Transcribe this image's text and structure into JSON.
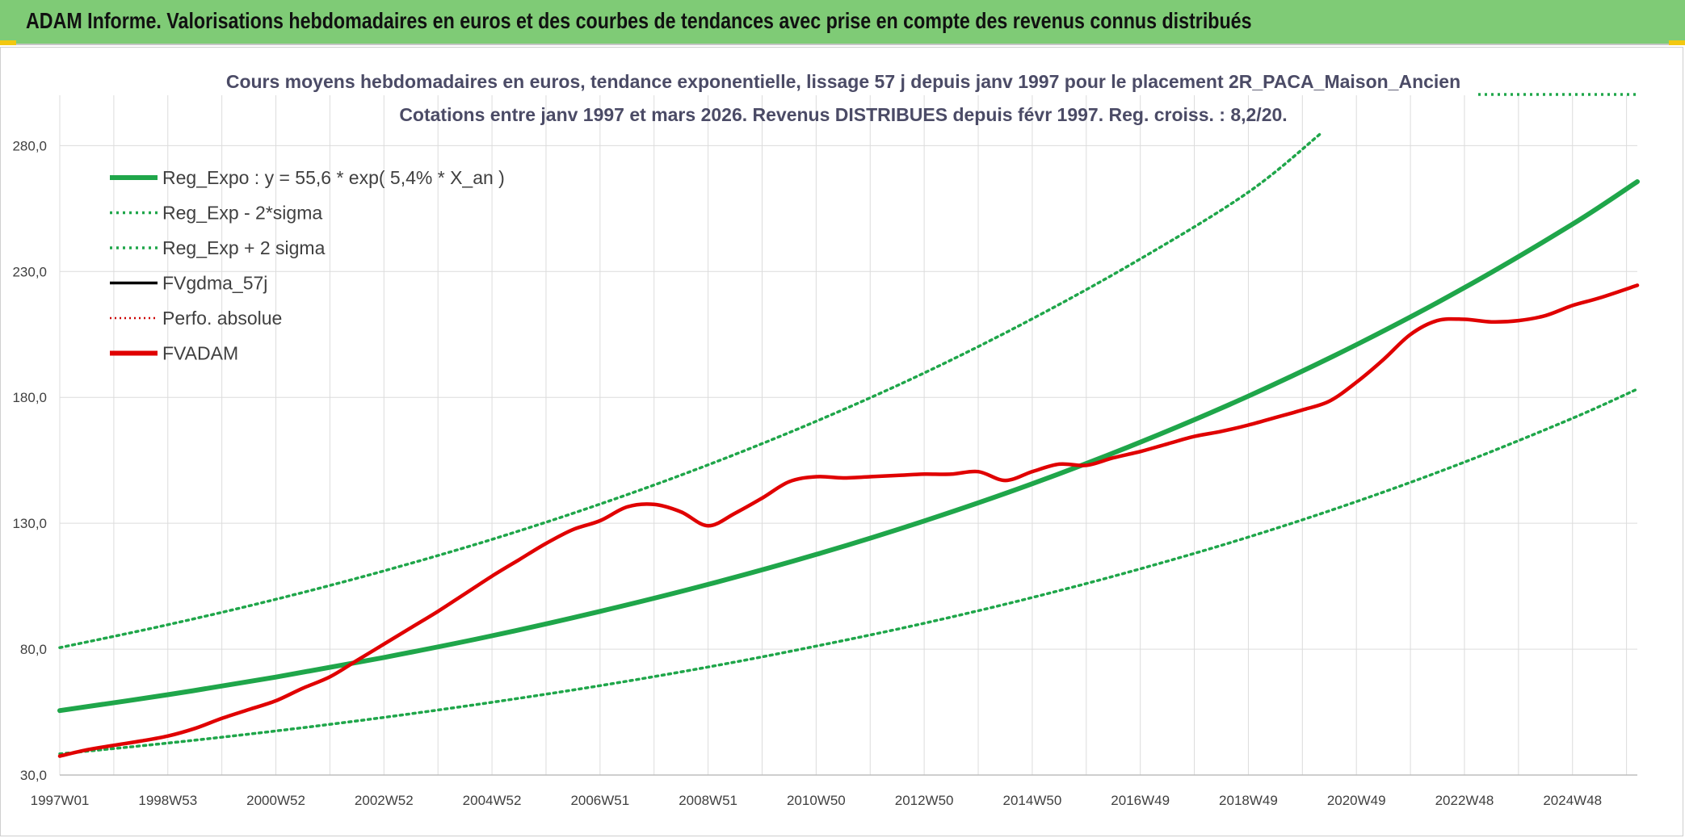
{
  "header": {
    "title": "ADAM Informe. Valorisations hebdomadaires en euros et des courbes de tendances avec prise en compte des revenus connus distribués"
  },
  "colors": {
    "header_bg": "#7fcb76",
    "reg_expo": "#1fa64a",
    "sigma_lines": "#1fa64a",
    "fvgdma": "#000000",
    "perfo": "#cc0000",
    "fvadam": "#e00000",
    "grid": "#dcdcdc"
  },
  "chart_data": {
    "type": "line",
    "subtitle_line1": "Cours moyens hebdomadaires en euros, tendance exponentielle, lissage 57 j depuis janv 1997 pour le placement 2R_PACA_Maison_Ancien",
    "subtitle_line2": "Cotations entre janv 1997 et mars 2026. Revenus DISTRIBUES depuis févr 1997. Reg. croiss. : 8,2/20.",
    "x_range": [
      "1997W01",
      "2026W12"
    ],
    "x_tick_labels": [
      "1997W01",
      "1998W53",
      "2000W52",
      "2002W52",
      "2004W52",
      "2006W51",
      "2008W51",
      "2010W50",
      "2012W50",
      "2014W50",
      "2016W49",
      "2018W49",
      "2020W49",
      "2022W48",
      "2024W48"
    ],
    "y_tick_labels": [
      "30,0",
      "80,0",
      "130,0",
      "180,0",
      "230,0",
      "280,0"
    ],
    "ylim": [
      30,
      300
    ],
    "grid": true,
    "legend_position": "top-left",
    "legend": [
      {
        "label": "Reg_Expo : y = 55,6 * exp( 5,4% *  X_an )",
        "style": "solid-thick",
        "color": "#1fa64a"
      },
      {
        "label": "Reg_Exp - 2*sigma",
        "style": "dotted",
        "color": "#1fa64a"
      },
      {
        "label": "Reg_Exp + 2 sigma",
        "style": "dotted",
        "color": "#1fa64a"
      },
      {
        "label": "FVgdma_57j",
        "style": "solid",
        "color": "#000000"
      },
      {
        "label": "Perfo. absolue",
        "style": "dotted-thin",
        "color": "#cc0000"
      },
      {
        "label": "FVADAM",
        "style": "solid-thick",
        "color": "#e00000"
      }
    ],
    "series": [
      {
        "name": "Reg_Expo : y = 55,6 * exp( 5,4% *  X_an )",
        "x": [
          1997.0,
          1999.0,
          2001.0,
          2003.0,
          2005.0,
          2007.0,
          2009.0,
          2011.0,
          2013.0,
          2015.0,
          2017.0,
          2019.0,
          2021.0,
          2023.0,
          2025.0,
          2026.2
        ],
        "y": [
          55.6,
          61.9,
          68.9,
          76.7,
          85.3,
          95.0,
          105.7,
          117.6,
          130.9,
          145.7,
          162.2,
          180.5,
          200.9,
          223.6,
          248.8,
          265.7
        ]
      },
      {
        "name": "Reg_Exp - 2*sigma",
        "x": [
          1997.0,
          1999.0,
          2001.0,
          2003.0,
          2005.0,
          2007.0,
          2009.0,
          2011.0,
          2013.0,
          2015.0,
          2017.0,
          2019.0,
          2021.0,
          2023.0,
          2025.0,
          2026.2
        ],
        "y": [
          38.4,
          42.7,
          47.5,
          52.9,
          58.9,
          65.5,
          72.9,
          81.2,
          90.3,
          100.5,
          111.9,
          124.5,
          138.6,
          154.3,
          171.7,
          183.3
        ]
      },
      {
        "name": "Reg_Exp + 2 sigma",
        "x": [
          1997.0,
          1999.0,
          2001.0,
          2003.0,
          2005.0,
          2007.0,
          2009.0,
          2011.0,
          2013.0,
          2015.0,
          2017.0,
          2019.0,
          2020.35
        ],
        "y": [
          80.6,
          89.7,
          99.8,
          111.1,
          123.6,
          137.6,
          153.2,
          170.5,
          189.7,
          211.2,
          235.0,
          261.5,
          285.0
        ]
      },
      {
        "name": "FVgdma_57j",
        "x": [
          1997.0,
          1997.5,
          1998.0,
          1998.5,
          1999.0,
          1999.5,
          2000.0,
          2000.5,
          2001.0,
          2001.5,
          2002.0,
          2002.5,
          2003.0,
          2003.5,
          2004.0,
          2004.5,
          2005.0,
          2005.5,
          2006.0,
          2006.5,
          2007.0,
          2007.5,
          2008.0,
          2008.5,
          2009.0,
          2009.5,
          2010.0,
          2010.5,
          2011.0,
          2011.5,
          2012.0,
          2012.5,
          2013.0,
          2013.5,
          2014.0,
          2014.5,
          2015.0,
          2015.5,
          2016.0,
          2016.5,
          2017.0,
          2017.5,
          2018.0,
          2018.5,
          2019.0,
          2019.5,
          2020.0,
          2020.5,
          2021.0,
          2021.5,
          2022.0,
          2022.5,
          2023.0,
          2023.5,
          2024.0,
          2024.5,
          2025.0,
          2025.5,
          2026.2
        ],
        "y": [
          37.5,
          40.0,
          41.8,
          43.5,
          45.5,
          48.5,
          52.5,
          56.0,
          59.5,
          64.5,
          69.0,
          75.5,
          82.0,
          88.5,
          95.0,
          102.0,
          109.0,
          115.5,
          122.0,
          127.5,
          131.0,
          136.5,
          137.5,
          134.5,
          129.0,
          134.0,
          140.0,
          146.5,
          148.5,
          148.0,
          148.5,
          149.0,
          149.5,
          149.5,
          150.5,
          147.0,
          150.5,
          153.5,
          153.0,
          156.0,
          158.5,
          161.5,
          164.5,
          166.5,
          169.0,
          172.0,
          175.0,
          178.5,
          186.0,
          195.0,
          205.0,
          210.5,
          211.0,
          210.0,
          210.5,
          212.5,
          216.5,
          219.5,
          224.5
        ]
      },
      {
        "name": "FVADAM",
        "x": [
          1997.0,
          1997.5,
          1998.0,
          1998.5,
          1999.0,
          1999.5,
          2000.0,
          2000.5,
          2001.0,
          2001.5,
          2002.0,
          2002.5,
          2003.0,
          2003.5,
          2004.0,
          2004.5,
          2005.0,
          2005.5,
          2006.0,
          2006.5,
          2007.0,
          2007.5,
          2008.0,
          2008.5,
          2009.0,
          2009.5,
          2010.0,
          2010.5,
          2011.0,
          2011.5,
          2012.0,
          2012.5,
          2013.0,
          2013.5,
          2014.0,
          2014.5,
          2015.0,
          2015.5,
          2016.0,
          2016.5,
          2017.0,
          2017.5,
          2018.0,
          2018.5,
          2019.0,
          2019.5,
          2020.0,
          2020.5,
          2021.0,
          2021.5,
          2022.0,
          2022.5,
          2023.0,
          2023.5,
          2024.0,
          2024.5,
          2025.0,
          2025.5,
          2026.2
        ],
        "y": [
          37.5,
          40.0,
          41.8,
          43.5,
          45.5,
          48.5,
          52.5,
          56.0,
          59.5,
          64.5,
          69.0,
          75.5,
          82.0,
          88.5,
          95.0,
          102.0,
          109.0,
          115.5,
          122.0,
          127.5,
          131.0,
          136.5,
          137.5,
          134.5,
          129.0,
          134.0,
          140.0,
          146.5,
          148.5,
          148.0,
          148.5,
          149.0,
          149.5,
          149.5,
          150.5,
          147.0,
          150.5,
          153.5,
          153.0,
          156.0,
          158.5,
          161.5,
          164.5,
          166.5,
          169.0,
          172.0,
          175.0,
          178.5,
          186.0,
          195.0,
          205.0,
          210.5,
          211.0,
          210.0,
          210.5,
          212.5,
          216.5,
          219.5,
          224.5
        ]
      }
    ]
  }
}
